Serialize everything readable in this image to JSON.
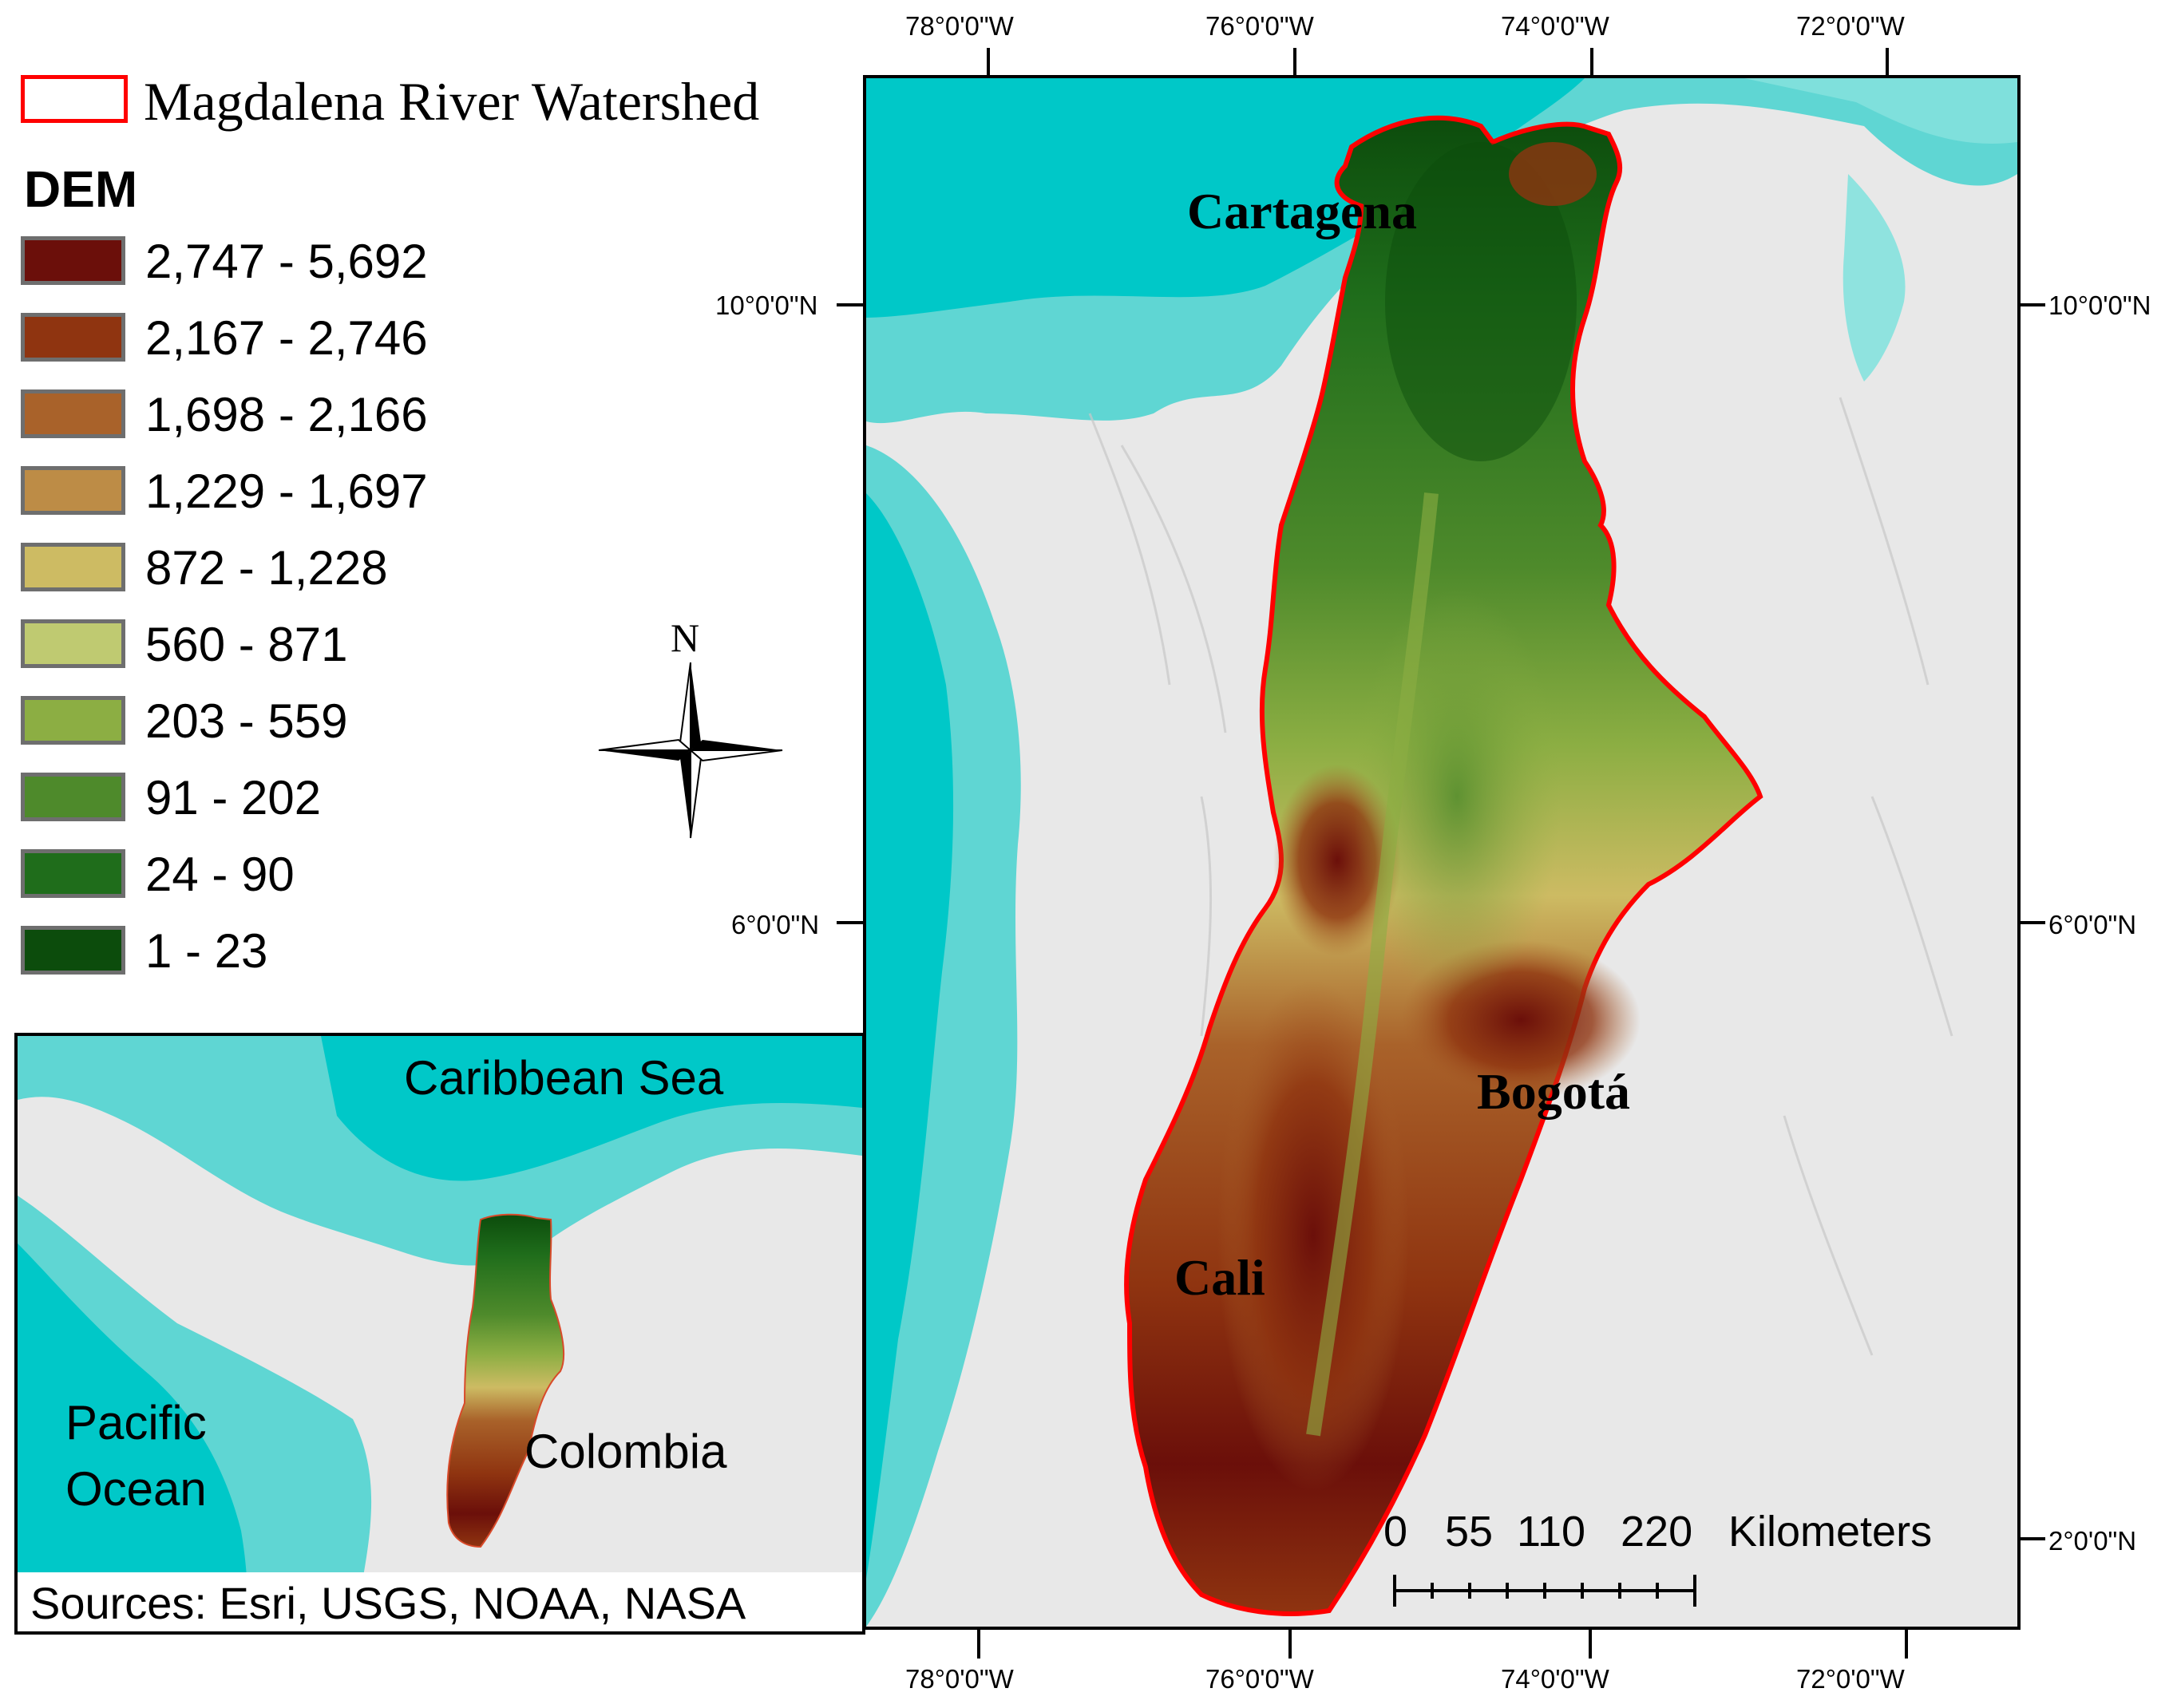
{
  "legend": {
    "watershed_label": "Magdalena River Watershed",
    "watershed_outline_color": "#ff0000",
    "dem_title": "DEM",
    "classes": [
      {
        "label": "2,747 - 5,692",
        "color": "#6b0f0a"
      },
      {
        "label": "2,167 - 2,746",
        "color": "#8f3410"
      },
      {
        "label": "1,698 - 2,166",
        "color": "#a9622a"
      },
      {
        "label": "1,229 - 1,697",
        "color": "#bd8c46"
      },
      {
        "label": "872 - 1,228",
        "color": "#cdbb63"
      },
      {
        "label": "560 - 871",
        "color": "#bfca71"
      },
      {
        "label": "203 - 559",
        "color": "#8cae43"
      },
      {
        "label": "91 - 202",
        "color": "#4e8a2b"
      },
      {
        "label": "24 - 90",
        "color": "#1f6d1b"
      },
      {
        "label": "1 - 23",
        "color": "#0c4c0c"
      }
    ]
  },
  "north_arrow": {
    "label": "N",
    "icon": "north-arrow-icon"
  },
  "graticule": {
    "top_longitudes": [
      "78°0'0\"W",
      "76°0'0\"W",
      "74°0'0\"W",
      "72°0'0\"W"
    ],
    "bottom_longitudes": [
      "78°0'0\"W",
      "76°0'0\"W",
      "74°0'0\"W",
      "72°0'0\"W"
    ],
    "left_latitudes": [
      "10°0'0\"N",
      "6°0'0\"N"
    ],
    "right_latitudes": [
      "10°0'0\"N",
      "6°0'0\"N",
      "2°0'0\"N"
    ]
  },
  "cities": {
    "cartagena": "Cartagena",
    "bogota": "Bogotá",
    "cali": "Cali"
  },
  "scale_bar": {
    "labels": [
      "0",
      "55",
      "110",
      "220"
    ],
    "units": "Kilometers"
  },
  "inset": {
    "caribbean": "Caribbean Sea",
    "pacific_line1": "Pacific",
    "pacific_line2": "Ocean",
    "colombia": "Colombia",
    "sources": "Sources: Esri, USGS, NOAA, NASA"
  },
  "colors": {
    "sea_shallow": "#5fd6d3",
    "sea_deep": "#00c8c8",
    "land": "#e8e8e8",
    "frame": "#000000"
  }
}
